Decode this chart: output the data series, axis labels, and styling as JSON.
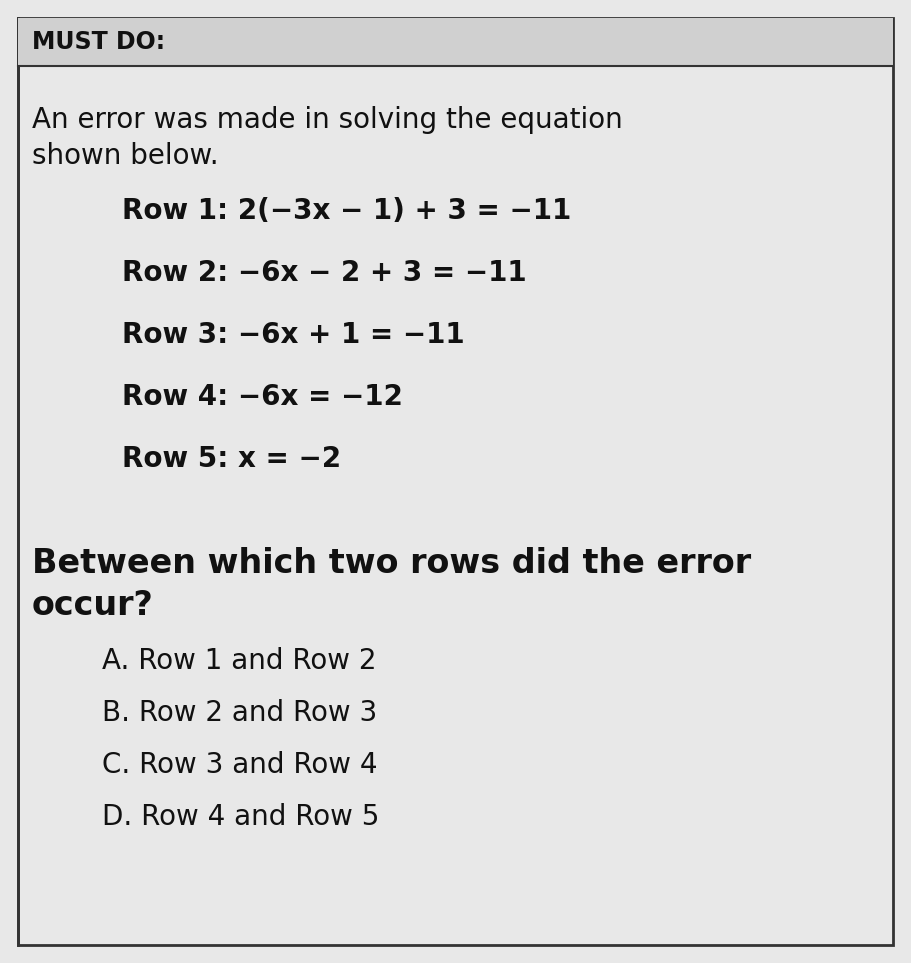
{
  "background_color": "#e8e8e8",
  "border_color": "#333333",
  "text_color": "#111111",
  "header_text": "MUST DO:",
  "header_fontsize": 17,
  "intro_line1": "An error was made in solving the equation",
  "intro_line2": "shown below.",
  "intro_fontsize": 20,
  "row_labels": [
    "Row 1: ",
    "Row 2: ",
    "Row 3: ",
    "Row 4: ",
    "Row 5: "
  ],
  "row_math": [
    "2(−3x − 1) + 3 = −11",
    "−6x − 2 + 3 = −11",
    "−6x + 1 = −11",
    "−6x = −12",
    "x = −2"
  ],
  "row_fontsize": 20,
  "question_line1": "Between which two rows did the error",
  "question_line2": "occur?",
  "question_fontsize": 24,
  "choices": [
    "A. Row 1 and Row 2",
    "B. Row 2 and Row 3",
    "C. Row 3 and Row 4",
    "D. Row 4 and Row 5"
  ],
  "choices_fontsize": 20,
  "fig_width": 9.11,
  "fig_height": 9.63,
  "dpi": 100
}
